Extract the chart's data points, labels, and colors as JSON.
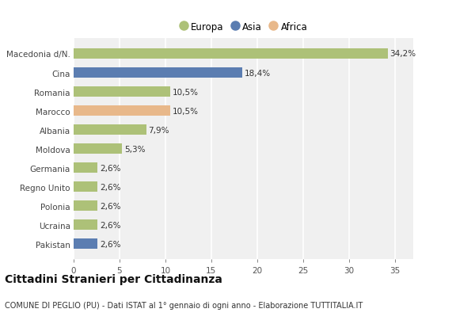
{
  "categories": [
    "Pakistan",
    "Ucraina",
    "Polonia",
    "Regno Unito",
    "Germania",
    "Moldova",
    "Albania",
    "Marocco",
    "Romania",
    "Cina",
    "Macedonia d/N."
  ],
  "values": [
    2.6,
    2.6,
    2.6,
    2.6,
    2.6,
    5.3,
    7.9,
    10.5,
    10.5,
    18.4,
    34.2
  ],
  "colors": [
    "#5b7db1",
    "#adc178",
    "#adc178",
    "#adc178",
    "#adc178",
    "#adc178",
    "#adc178",
    "#e8b88a",
    "#adc178",
    "#5b7db1",
    "#adc178"
  ],
  "labels": [
    "2,6%",
    "2,6%",
    "2,6%",
    "2,6%",
    "2,6%",
    "5,3%",
    "7,9%",
    "10,5%",
    "10,5%",
    "18,4%",
    "34,2%"
  ],
  "legend": [
    {
      "label": "Europa",
      "color": "#adc178"
    },
    {
      "label": "Asia",
      "color": "#5b7db1"
    },
    {
      "label": "Africa",
      "color": "#e8b88a"
    }
  ],
  "title": "Cittadini Stranieri per Cittadinanza",
  "subtitle": "COMUNE DI PEGLIO (PU) - Dati ISTAT al 1° gennaio di ogni anno - Elaborazione TUTTITALIA.IT",
  "xlim": [
    0,
    37
  ],
  "xticks": [
    0,
    5,
    10,
    15,
    20,
    25,
    30,
    35
  ],
  "bg_color": "#ffffff",
  "plot_bg_color": "#f0f0f0",
  "bar_height": 0.55,
  "grid_color": "#ffffff",
  "label_fontsize": 7.5,
  "tick_fontsize": 7.5,
  "ytick_fontsize": 7.5,
  "title_fontsize": 10,
  "subtitle_fontsize": 7,
  "legend_fontsize": 8.5
}
